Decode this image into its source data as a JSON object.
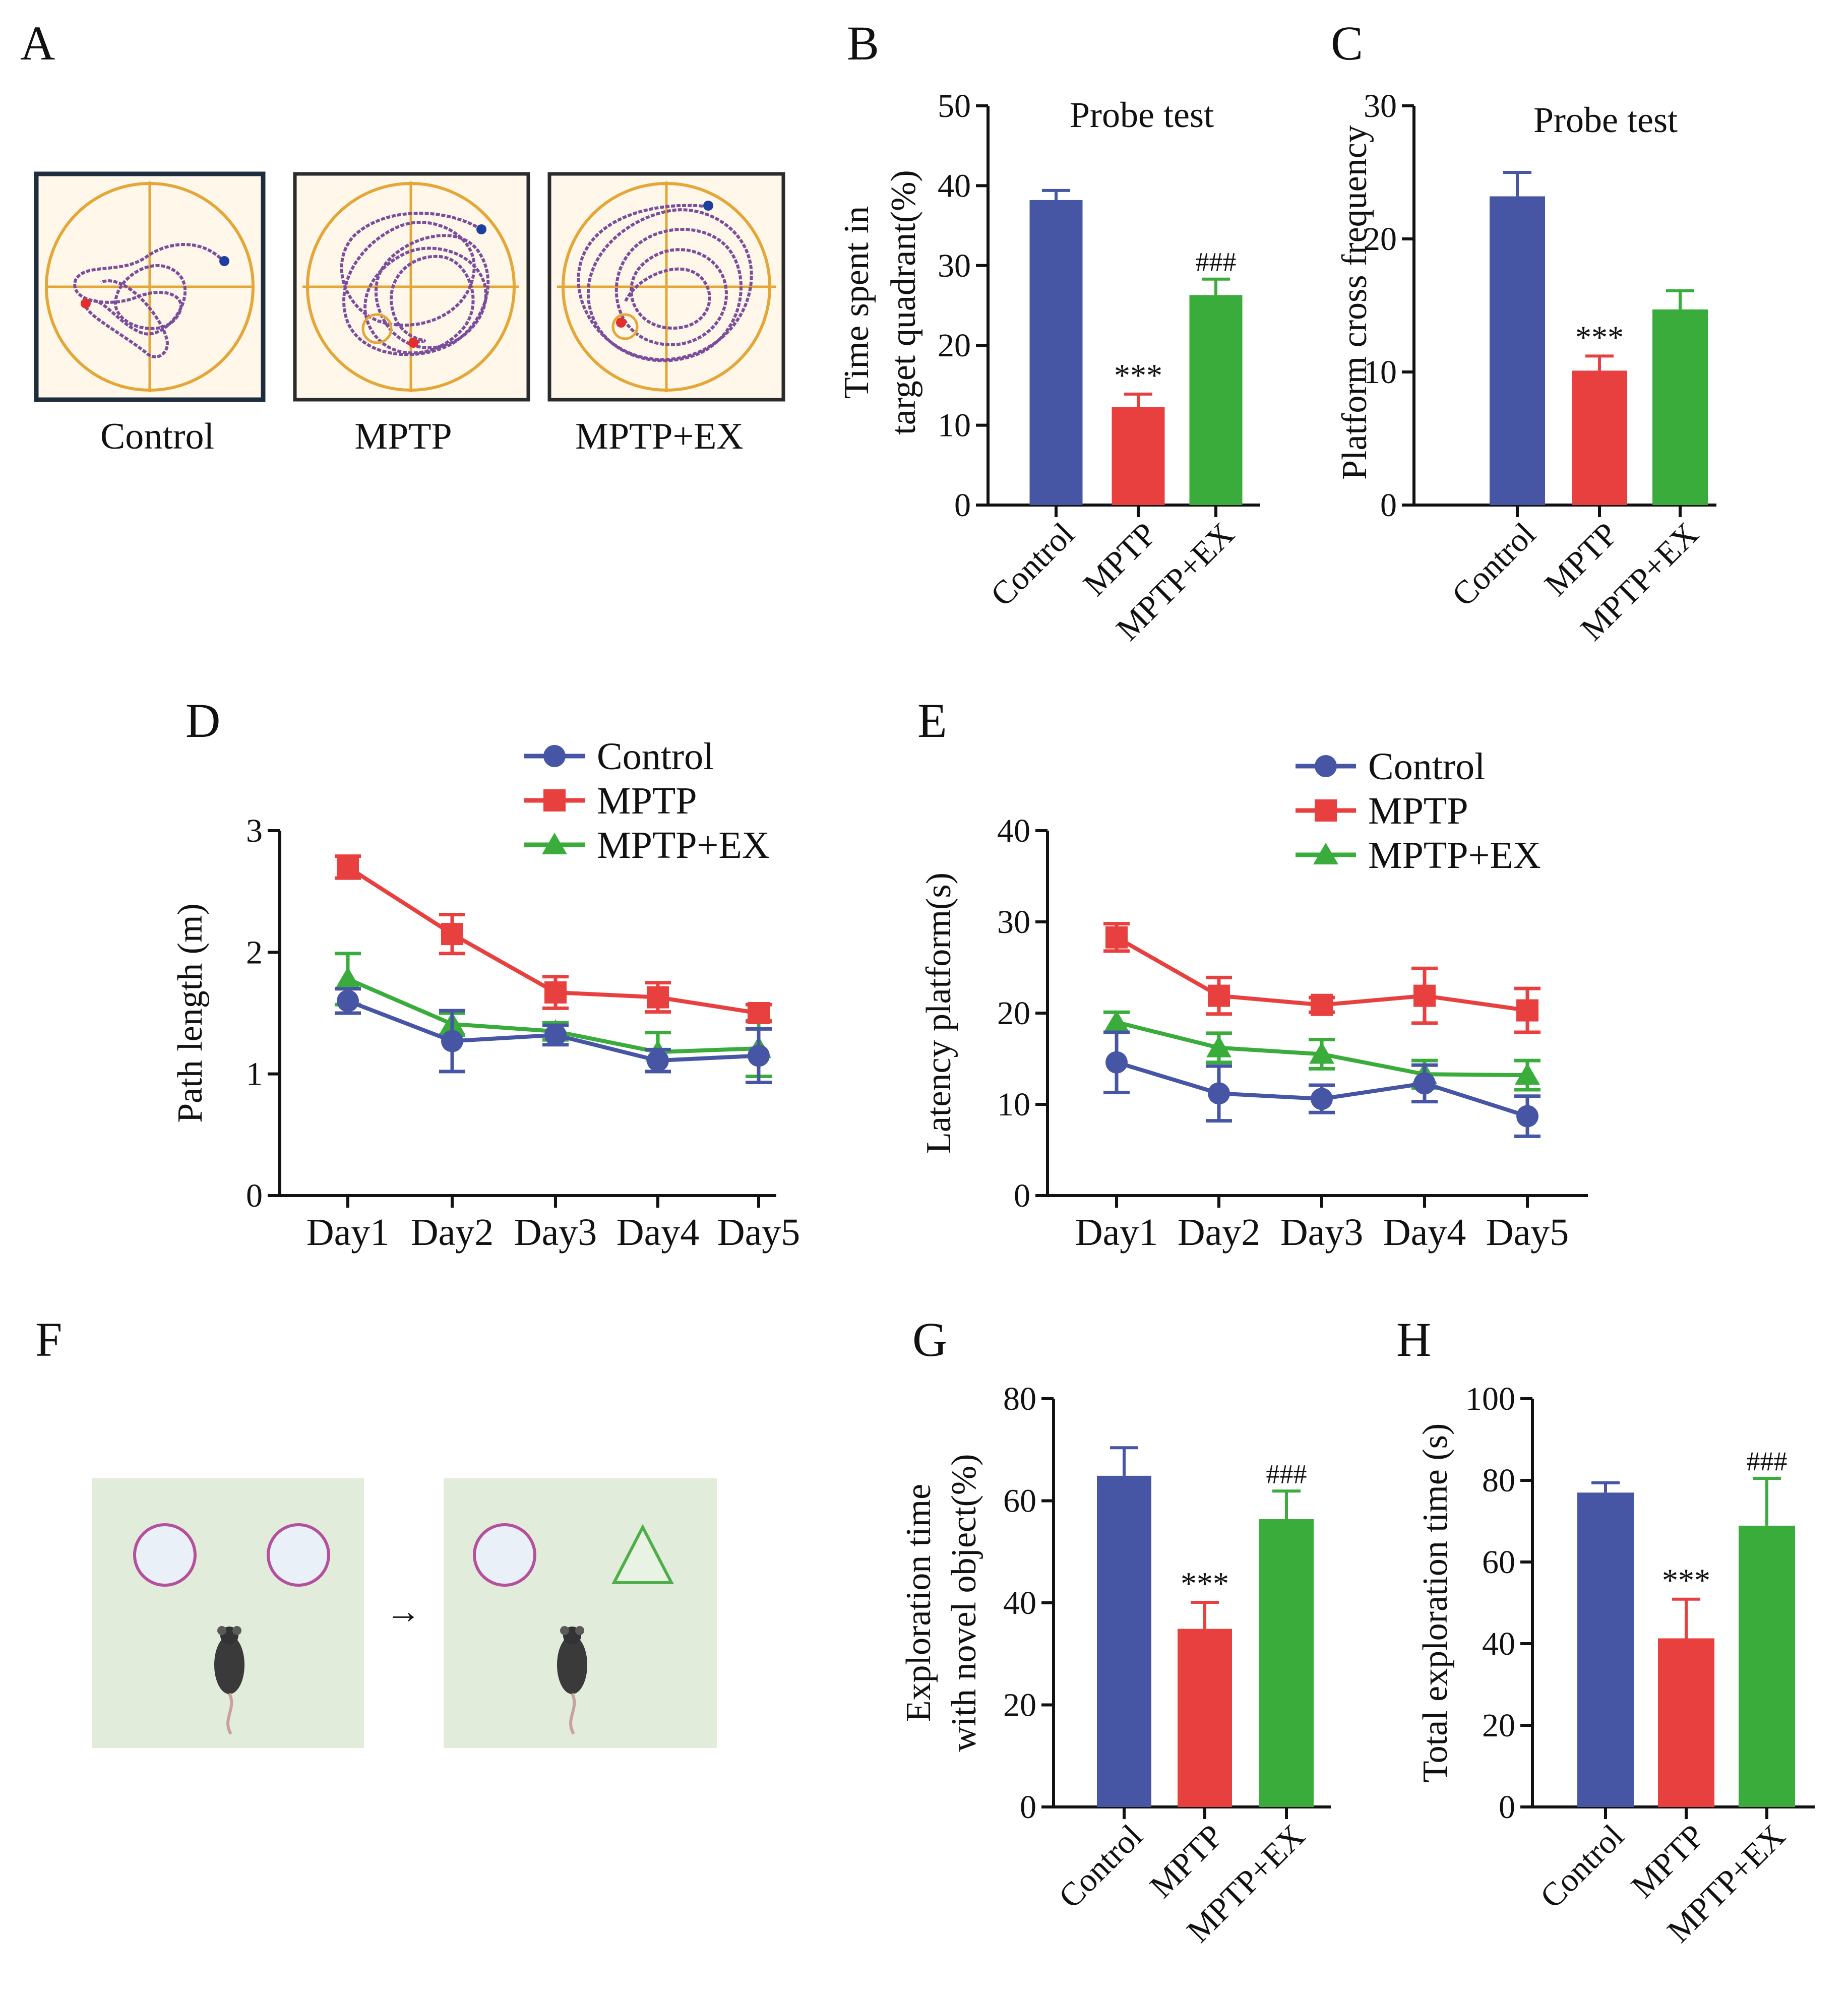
{
  "figure": {
    "panels": [
      "A",
      "B",
      "C",
      "D",
      "E",
      "F",
      "G",
      "H"
    ],
    "groups": [
      "Control",
      "MPTP",
      "MPTP+EX"
    ],
    "colors": {
      "Control": "#4656A5",
      "MPTP": "#E8403F",
      "MPTP+EX": "#39AC3B"
    }
  },
  "panel_a": {
    "captions": [
      "Control",
      "MPTP",
      "MPTP+EX"
    ]
  },
  "panel_f": {
    "arrow": "→"
  },
  "chart_data": [
    {
      "id": "B",
      "type": "bar",
      "title": "Probe test",
      "ylabel_lines": [
        "Time spent in",
        "target quadrant(%)"
      ],
      "categories": [
        "Control",
        "MPTP",
        "MPTP+EX"
      ],
      "values": [
        38.2,
        12.3,
        26.3
      ],
      "errors": [
        1.2,
        1.6,
        2.0
      ],
      "annotations": [
        "",
        "***",
        "###"
      ],
      "ylim": [
        0,
        50
      ],
      "yticks": [
        0,
        10,
        20,
        30,
        40,
        50
      ]
    },
    {
      "id": "C",
      "type": "bar",
      "title": "Probe test",
      "ylabel_lines": [
        "Platform cross frequency"
      ],
      "categories": [
        "Control",
        "MPTP",
        "MPTP+EX"
      ],
      "values": [
        23.2,
        10.1,
        14.7
      ],
      "errors": [
        1.8,
        1.1,
        1.4
      ],
      "annotations": [
        "",
        "***",
        ""
      ],
      "ylim": [
        0,
        30
      ],
      "yticks": [
        0,
        10,
        20,
        30
      ]
    },
    {
      "id": "D",
      "type": "line",
      "ylabel": "Path length (m)",
      "categories": [
        "Day1",
        "Day2",
        "Day3",
        "Day4",
        "Day5"
      ],
      "ylim": [
        0,
        3
      ],
      "yticks": [
        0,
        1,
        2,
        3
      ],
      "series": [
        {
          "name": "Control",
          "marker": "circle",
          "values": [
            1.6,
            1.27,
            1.32,
            1.11,
            1.15
          ],
          "errors": [
            0.1,
            0.25,
            0.08,
            0.09,
            0.22
          ]
        },
        {
          "name": "MPTP",
          "marker": "square",
          "values": [
            2.7,
            2.15,
            1.67,
            1.63,
            1.5
          ],
          "errors": [
            0.09,
            0.16,
            0.13,
            0.12,
            0.07
          ]
        },
        {
          "name": "MPTP+EX",
          "marker": "triangle",
          "values": [
            1.78,
            1.41,
            1.35,
            1.18,
            1.21
          ],
          "errors": [
            0.21,
            0.09,
            0.07,
            0.16,
            0.23
          ]
        }
      ]
    },
    {
      "id": "E",
      "type": "line",
      "ylabel": "Latency platform(s)",
      "categories": [
        "Day1",
        "Day2",
        "Day3",
        "Day4",
        "Day5"
      ],
      "ylim": [
        0,
        40
      ],
      "yticks": [
        0,
        10,
        20,
        30,
        40
      ],
      "series": [
        {
          "name": "Control",
          "marker": "circle",
          "values": [
            14.6,
            11.2,
            10.6,
            12.3,
            8.7
          ],
          "errors": [
            3.3,
            3.0,
            1.5,
            2.0,
            2.2
          ]
        },
        {
          "name": "MPTP",
          "marker": "square",
          "values": [
            28.3,
            21.9,
            20.9,
            21.9,
            20.3
          ],
          "errors": [
            1.5,
            2.0,
            0.8,
            3.0,
            2.4
          ]
        },
        {
          "name": "MPTP+EX",
          "marker": "triangle",
          "values": [
            19.0,
            16.2,
            15.5,
            13.3,
            13.2
          ],
          "errors": [
            1.1,
            1.6,
            1.6,
            1.5,
            1.6
          ]
        }
      ]
    },
    {
      "id": "G",
      "type": "bar",
      "ylabel_lines": [
        "Exploration time",
        "with novel object(%)"
      ],
      "categories": [
        "Control",
        "MPTP",
        "MPTP+EX"
      ],
      "values": [
        64.9,
        34.9,
        56.4
      ],
      "errors": [
        5.5,
        5.2,
        5.5
      ],
      "annotations": [
        "",
        "***",
        "###"
      ],
      "ylim": [
        0,
        80
      ],
      "yticks": [
        0,
        20,
        40,
        60,
        80
      ]
    },
    {
      "id": "H",
      "type": "bar",
      "ylabel_lines": [
        "Total exploration time (s)"
      ],
      "categories": [
        "Control",
        "MPTP",
        "MPTP+EX"
      ],
      "values": [
        77.0,
        41.3,
        68.9
      ],
      "errors": [
        2.4,
        9.6,
        11.6
      ],
      "annotations": [
        "",
        "***",
        "###"
      ],
      "ylim": [
        0,
        100
      ],
      "yticks": [
        0,
        20,
        40,
        60,
        80,
        100
      ]
    }
  ]
}
